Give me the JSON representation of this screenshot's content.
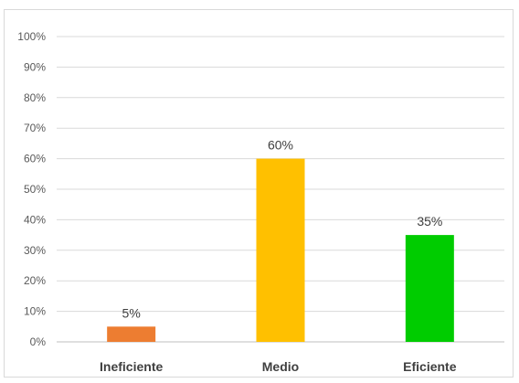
{
  "chart_data": {
    "type": "bar",
    "categories": [
      "Ineficiente",
      "Medio",
      "Eficiente"
    ],
    "values": [
      5,
      60,
      35
    ],
    "data_labels": [
      "5%",
      "60%",
      "35%"
    ],
    "colors": [
      "#ED7D31",
      "#FFC000",
      "#00CC00"
    ],
    "ylim": [
      0,
      100
    ],
    "y_step": 10,
    "y_tick_labels": [
      "0%",
      "10%",
      "20%",
      "30%",
      "40%",
      "50%",
      "60%",
      "70%",
      "80%",
      "90%",
      "100%"
    ],
    "grid": true,
    "legend": "none",
    "title": "",
    "xlabel": "",
    "ylabel": ""
  }
}
